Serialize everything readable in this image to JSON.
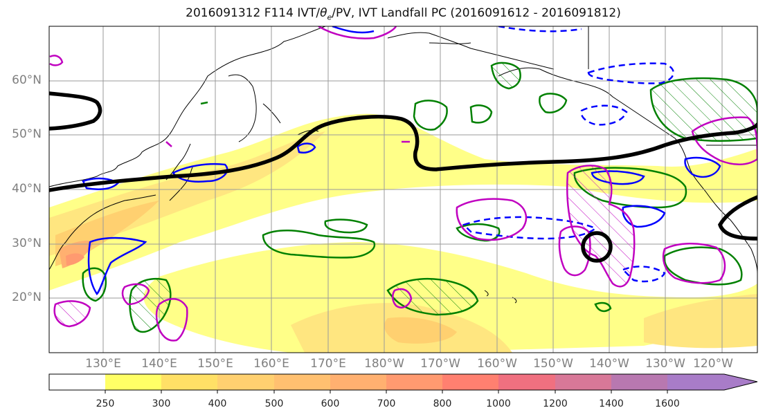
{
  "title": "2016091312 F114 IVT/θe/PV, IVT Landfall PC (2016091612 - 2016091812)",
  "lat_labels": [
    "60°N",
    "50°N",
    "40°N",
    "30°N",
    "20°N"
  ],
  "lon_labels": [
    "130°E",
    "140°E",
    "150°E",
    "160°E",
    "170°E",
    "180°W",
    "170°W",
    "160°W",
    "150°W",
    "140°W",
    "130°W",
    "120°W"
  ],
  "colorbar": {
    "ticks": [
      "250",
      "300",
      "400",
      "500",
      "600",
      "700",
      "800",
      "1000",
      "1200",
      "1400",
      "1600"
    ],
    "colors": [
      "#ffffff",
      "#ffff66",
      "#ffe066",
      "#ffd070",
      "#ffc070",
      "#ffb070",
      "#ff9a70",
      "#ff8070",
      "#f07080",
      "#d87898",
      "#b878b0",
      "#a87cc8"
    ]
  },
  "palette": {
    "blue": "#0000ff",
    "green": "#008000",
    "magenta": "#c000c0",
    "black": "#000000"
  }
}
